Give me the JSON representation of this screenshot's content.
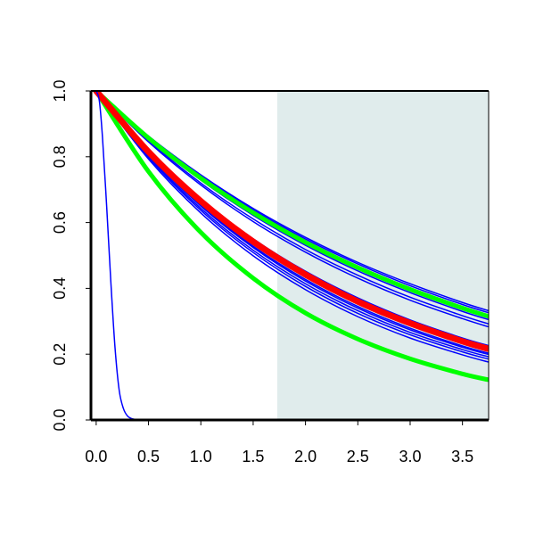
{
  "chart_data": {
    "type": "line",
    "title": "",
    "xlabel": "",
    "ylabel": "",
    "xlim": [
      -0.05,
      3.75
    ],
    "ylim": [
      0.0,
      1.0
    ],
    "x_ticks": [
      "0.0",
      "0.5",
      "1.0",
      "1.5",
      "2.0",
      "2.5",
      "3.0",
      "3.5"
    ],
    "y_ticks": [
      "0.0",
      "0.2",
      "0.4",
      "0.6",
      "0.8",
      "1.0"
    ],
    "shaded_region": {
      "x_start": 1.73,
      "x_end": 3.75,
      "color": "#e0ecec"
    },
    "grid": false,
    "legend": "none",
    "series": [
      {
        "color": "#0000ff",
        "width": 1.5,
        "x": [
          0,
          0.5,
          1,
          1.5,
          2,
          2.5,
          3,
          3.5,
          3.75
        ],
        "y": [
          1.0,
          0.863,
          0.745,
          0.643,
          0.555,
          0.479,
          0.414,
          0.357,
          0.332
        ]
      },
      {
        "color": "#0000ff",
        "width": 1.5,
        "x": [
          0,
          0.5,
          1,
          1.5,
          2,
          2.5,
          3,
          3.5,
          3.75
        ],
        "y": [
          1.0,
          0.861,
          0.742,
          0.639,
          0.55,
          0.474,
          0.408,
          0.351,
          0.326
        ]
      },
      {
        "color": "#0000ff",
        "width": 1.5,
        "x": [
          0,
          0.5,
          1,
          1.5,
          2,
          2.5,
          3,
          3.5,
          3.75
        ],
        "y": [
          1.0,
          0.858,
          0.737,
          0.632,
          0.543,
          0.466,
          0.4,
          0.343,
          0.318
        ]
      },
      {
        "color": "#0000ff",
        "width": 1.5,
        "x": [
          0,
          0.5,
          1,
          1.5,
          2,
          2.5,
          3,
          3.5,
          3.75
        ],
        "y": [
          1.0,
          0.854,
          0.729,
          0.622,
          0.531,
          0.453,
          0.387,
          0.33,
          0.305
        ]
      },
      {
        "color": "#0000ff",
        "width": 1.5,
        "x": [
          0,
          0.5,
          1,
          1.5,
          2,
          2.5,
          3,
          3.5,
          3.75
        ],
        "y": [
          1.0,
          0.849,
          0.72,
          0.611,
          0.518,
          0.44,
          0.373,
          0.317,
          0.292
        ]
      },
      {
        "color": "#0000ff",
        "width": 1.5,
        "x": [
          0,
          0.5,
          1,
          1.5,
          2,
          2.5,
          3,
          3.5,
          3.75
        ],
        "y": [
          1.0,
          0.845,
          0.714,
          0.603,
          0.51,
          0.431,
          0.364,
          0.308,
          0.283
        ]
      },
      {
        "color": "#0000ff",
        "width": 1.5,
        "x": [
          0,
          0.5,
          1,
          1.5,
          2,
          2.5,
          3,
          3.5,
          3.75
        ],
        "y": [
          1.0,
          0.82,
          0.672,
          0.551,
          0.452,
          0.371,
          0.304,
          0.249,
          0.226
        ]
      },
      {
        "color": "#0000ff",
        "width": 1.5,
        "x": [
          0,
          0.5,
          1,
          1.5,
          2,
          2.5,
          3,
          3.5,
          3.75
        ],
        "y": [
          1.0,
          0.808,
          0.653,
          0.528,
          0.427,
          0.345,
          0.279,
          0.225,
          0.203
        ]
      },
      {
        "color": "#0000ff",
        "width": 1.5,
        "x": [
          0,
          0.5,
          1,
          1.5,
          2,
          2.5,
          3,
          3.5,
          3.75
        ],
        "y": [
          1.0,
          0.806,
          0.65,
          0.524,
          0.422,
          0.34,
          0.274,
          0.221,
          0.199
        ]
      },
      {
        "color": "#0000ff",
        "width": 1.5,
        "x": [
          0,
          0.5,
          1,
          1.5,
          2,
          2.5,
          3,
          3.5,
          3.75
        ],
        "y": [
          1.0,
          0.802,
          0.643,
          0.516,
          0.414,
          0.332,
          0.266,
          0.214,
          0.192
        ]
      },
      {
        "color": "#0000ff",
        "width": 1.5,
        "x": [
          0,
          0.5,
          1,
          1.5,
          2,
          2.5,
          3,
          3.5,
          3.75
        ],
        "y": [
          1.0,
          0.798,
          0.637,
          0.509,
          0.406,
          0.324,
          0.259,
          0.207,
          0.185
        ]
      },
      {
        "color": "#0000ff",
        "width": 1.5,
        "x": [
          0,
          0.5,
          1,
          1.5,
          2,
          2.5,
          3,
          3.5,
          3.75
        ],
        "y": [
          1.0,
          0.793,
          0.629,
          0.499,
          0.396,
          0.314,
          0.249,
          0.198,
          0.176
        ]
      },
      {
        "color": "#00ff00",
        "width": 5,
        "x": [
          0,
          0.5,
          1,
          1.5,
          2,
          2.5,
          3,
          3.5,
          3.75
        ],
        "y": [
          1.0,
          0.857,
          0.735,
          0.63,
          0.54,
          0.463,
          0.397,
          0.34,
          0.315
        ]
      },
      {
        "color": "#00ff00",
        "width": 5,
        "x": [
          0,
          0.5,
          1,
          1.5,
          2,
          2.5,
          3,
          3.5,
          3.75
        ],
        "y": [
          1.0,
          0.755,
          0.57,
          0.431,
          0.325,
          0.246,
          0.186,
          0.14,
          0.122
        ]
      },
      {
        "color": "#ff0000",
        "width": 7,
        "x": [
          0,
          0.5,
          1,
          1.5,
          2,
          2.5,
          3,
          3.5,
          3.75
        ],
        "y": [
          1.0,
          0.815,
          0.665,
          0.542,
          0.442,
          0.36,
          0.294,
          0.239,
          0.216
        ]
      },
      {
        "color": "#0000ff",
        "width": 1.5,
        "x": [
          0,
          0.03,
          0.06,
          0.1,
          0.14,
          0.18,
          0.22,
          0.26,
          0.3,
          0.35,
          0.4,
          0.5,
          1,
          2,
          3,
          3.75
        ],
        "y": [
          1.0,
          0.97,
          0.86,
          0.65,
          0.42,
          0.22,
          0.09,
          0.035,
          0.012,
          0.003,
          0.001,
          0.0,
          0.0,
          0.0,
          0.0,
          0.0
        ]
      }
    ]
  }
}
